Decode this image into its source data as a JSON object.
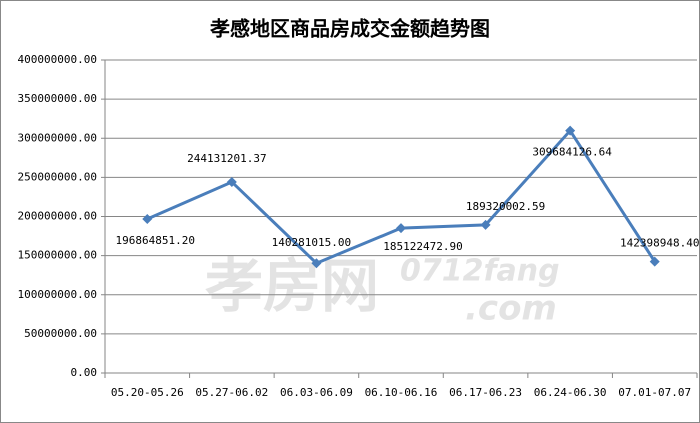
{
  "chart_data": {
    "type": "line",
    "title": "孝感地区商品房成交金额趋势图",
    "categories": [
      "05.20-05.26",
      "05.27-06.02",
      "06.03-06.09",
      "06.10-06.16",
      "06.17-06.23",
      "06.24-06.30",
      "07.01-07.07"
    ],
    "series": [
      {
        "name": "成交金额",
        "color": "#4a7ebb",
        "values": [
          196864851.2,
          244131201.37,
          140281015.0,
          185122472.9,
          189320002.59,
          309684126.64,
          142398948.4
        ],
        "value_labels": [
          "196864851.20",
          "244131201.37",
          "140281015.00",
          "185122472.90",
          "189320002.59",
          "309684126.64",
          "142398948.40"
        ]
      }
    ],
    "ylim": [
      0,
      400000000
    ],
    "yticks": [
      {
        "value": 0,
        "label": "0.00"
      },
      {
        "value": 50000000,
        "label": "50000000.00"
      },
      {
        "value": 100000000,
        "label": "100000000.00"
      },
      {
        "value": 150000000,
        "label": "150000000.00"
      },
      {
        "value": 200000000,
        "label": "200000000.00"
      },
      {
        "value": 250000000,
        "label": "250000000.00"
      },
      {
        "value": 300000000,
        "label": "300000000.00"
      },
      {
        "value": 350000000,
        "label": "350000000.00"
      },
      {
        "value": 400000000,
        "label": "400000000.00"
      }
    ],
    "grid": true,
    "watermark": [
      "孝房网",
      "0712fang",
      ".com"
    ]
  }
}
